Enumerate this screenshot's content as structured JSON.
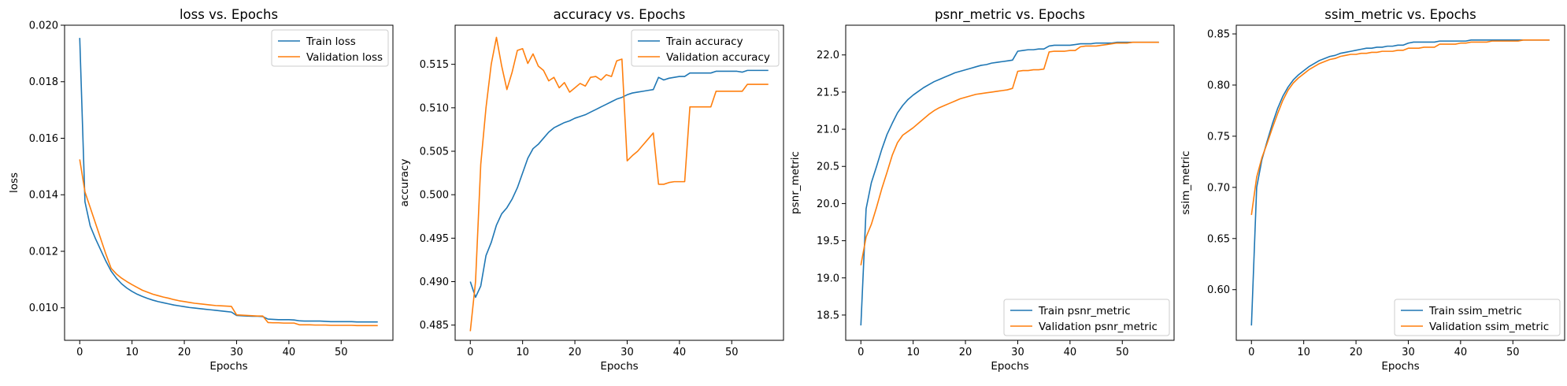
{
  "colors": {
    "train": "#1f77b4",
    "validation": "#ff7f0e"
  },
  "chart_data": [
    {
      "type": "line",
      "title": "loss vs. Epochs",
      "xlabel": "Epochs",
      "ylabel": "loss",
      "xlim": [
        -2.9,
        59.9
      ],
      "ylim": [
        0.00885,
        0.02
      ],
      "xticks": [
        0,
        10,
        20,
        30,
        40,
        50
      ],
      "yticks": [
        0.01,
        0.012,
        0.014,
        0.016,
        0.018,
        0.02
      ],
      "ytick_decimals": 3,
      "legend_loc": "upper right",
      "x": [
        0,
        1,
        2,
        3,
        4,
        5,
        6,
        7,
        8,
        9,
        10,
        11,
        12,
        13,
        14,
        15,
        16,
        17,
        18,
        19,
        20,
        21,
        22,
        23,
        24,
        25,
        26,
        27,
        28,
        29,
        30,
        31,
        32,
        33,
        34,
        35,
        36,
        37,
        38,
        39,
        40,
        41,
        42,
        43,
        44,
        45,
        46,
        47,
        48,
        49,
        50,
        51,
        52,
        53,
        54,
        55,
        56,
        57
      ],
      "series": [
        {
          "name": "Train loss",
          "color_key": "train",
          "values": [
            0.01955,
            0.01375,
            0.0129,
            0.01245,
            0.01205,
            0.01165,
            0.0113,
            0.01105,
            0.01085,
            0.0107,
            0.01058,
            0.01048,
            0.0104,
            0.01033,
            0.01027,
            0.01022,
            0.01018,
            0.01014,
            0.0101,
            0.01007,
            0.01004,
            0.01001,
            0.00999,
            0.00997,
            0.00995,
            0.00993,
            0.00991,
            0.00989,
            0.00987,
            0.00985,
            0.00973,
            0.00972,
            0.00971,
            0.0097,
            0.0097,
            0.00969,
            0.0096,
            0.00959,
            0.00958,
            0.00958,
            0.00958,
            0.00957,
            0.00954,
            0.00953,
            0.00953,
            0.00953,
            0.00953,
            0.00952,
            0.00951,
            0.00951,
            0.00951,
            0.00951,
            0.00951,
            0.0095,
            0.0095,
            0.0095,
            0.0095,
            0.0095
          ]
        },
        {
          "name": "Validation loss",
          "color_key": "validation",
          "values": [
            0.01525,
            0.0141,
            0.01355,
            0.013,
            0.01245,
            0.0119,
            0.0114,
            0.0112,
            0.01105,
            0.01093,
            0.01082,
            0.01072,
            0.01062,
            0.01055,
            0.01048,
            0.01043,
            0.01038,
            0.01034,
            0.01029,
            0.01025,
            0.01022,
            0.01019,
            0.01016,
            0.01014,
            0.01012,
            0.0101,
            0.01008,
            0.01007,
            0.01006,
            0.01005,
            0.00975,
            0.00974,
            0.00973,
            0.00972,
            0.00971,
            0.00971,
            0.00948,
            0.00947,
            0.00947,
            0.00946,
            0.00946,
            0.00946,
            0.0094,
            0.0094,
            0.0094,
            0.00939,
            0.00939,
            0.00939,
            0.00938,
            0.00938,
            0.00938,
            0.00938,
            0.00938,
            0.00937,
            0.00937,
            0.00937,
            0.00937,
            0.00937
          ]
        }
      ]
    },
    {
      "type": "line",
      "title": "accuracy vs. Epochs",
      "xlabel": "Epochs",
      "ylabel": "accuracy",
      "xlim": [
        -2.9,
        59.9
      ],
      "ylim": [
        0.48325,
        0.5195
      ],
      "xticks": [
        0,
        10,
        20,
        30,
        40,
        50
      ],
      "yticks": [
        0.485,
        0.49,
        0.495,
        0.5,
        0.505,
        0.51,
        0.515
      ],
      "ytick_decimals": 3,
      "legend_loc": "upper right",
      "x": [
        0,
        1,
        2,
        3,
        4,
        5,
        6,
        7,
        8,
        9,
        10,
        11,
        12,
        13,
        14,
        15,
        16,
        17,
        18,
        19,
        20,
        21,
        22,
        23,
        24,
        25,
        26,
        27,
        28,
        29,
        30,
        31,
        32,
        33,
        34,
        35,
        36,
        37,
        38,
        39,
        40,
        41,
        42,
        43,
        44,
        45,
        46,
        47,
        48,
        49,
        50,
        51,
        52,
        53,
        54,
        55,
        56,
        57
      ],
      "series": [
        {
          "name": "Train accuracy",
          "color_key": "train",
          "values": [
            0.49,
            0.4882,
            0.4895,
            0.493,
            0.4945,
            0.4965,
            0.4978,
            0.4985,
            0.4995,
            0.5008,
            0.5025,
            0.5042,
            0.5053,
            0.5058,
            0.5065,
            0.5072,
            0.5077,
            0.508,
            0.5083,
            0.5085,
            0.5088,
            0.509,
            0.5092,
            0.5095,
            0.5098,
            0.5101,
            0.5104,
            0.5107,
            0.511,
            0.5112,
            0.5115,
            0.5117,
            0.5118,
            0.5119,
            0.512,
            0.5121,
            0.5135,
            0.5132,
            0.5134,
            0.5135,
            0.5136,
            0.5136,
            0.514,
            0.514,
            0.514,
            0.514,
            0.514,
            0.5142,
            0.5142,
            0.5142,
            0.5142,
            0.5142,
            0.5141,
            0.5143,
            0.5143,
            0.5143,
            0.5143,
            0.5143
          ]
        },
        {
          "name": "Validation accuracy",
          "color_key": "validation",
          "values": [
            0.4843,
            0.49,
            0.5035,
            0.51,
            0.515,
            0.5181,
            0.5148,
            0.5121,
            0.5141,
            0.5166,
            0.5168,
            0.5151,
            0.5162,
            0.5148,
            0.5143,
            0.5131,
            0.5135,
            0.5123,
            0.5129,
            0.5118,
            0.5123,
            0.5128,
            0.5125,
            0.5135,
            0.5136,
            0.5132,
            0.5138,
            0.5136,
            0.5154,
            0.5156,
            0.5039,
            0.5045,
            0.505,
            0.5057,
            0.5064,
            0.5071,
            0.5012,
            0.5012,
            0.5014,
            0.5015,
            0.5015,
            0.5015,
            0.5101,
            0.5101,
            0.5101,
            0.5101,
            0.5101,
            0.5119,
            0.5119,
            0.5119,
            0.5119,
            0.5119,
            0.5119,
            0.5127,
            0.5127,
            0.5127,
            0.5127,
            0.5127
          ]
        }
      ]
    },
    {
      "type": "line",
      "title": "psnr_metric vs. Epochs",
      "xlabel": "Epochs",
      "ylabel": "psnr_metric",
      "xlim": [
        -2.9,
        59.9
      ],
      "ylim": [
        18.16,
        22.4
      ],
      "xticks": [
        0,
        10,
        20,
        30,
        40,
        50
      ],
      "yticks": [
        18.5,
        19.0,
        19.5,
        20.0,
        20.5,
        21.0,
        21.5,
        22.0
      ],
      "ytick_decimals": 1,
      "legend_loc": "lower right",
      "x": [
        0,
        1,
        2,
        3,
        4,
        5,
        6,
        7,
        8,
        9,
        10,
        11,
        12,
        13,
        14,
        15,
        16,
        17,
        18,
        19,
        20,
        21,
        22,
        23,
        24,
        25,
        26,
        27,
        28,
        29,
        30,
        31,
        32,
        33,
        34,
        35,
        36,
        37,
        38,
        39,
        40,
        41,
        42,
        43,
        44,
        45,
        46,
        47,
        48,
        49,
        50,
        51,
        52,
        53,
        54,
        55,
        56,
        57
      ],
      "series": [
        {
          "name": "Train psnr_metric",
          "color_key": "train",
          "values": [
            18.36,
            19.93,
            20.28,
            20.5,
            20.73,
            20.93,
            21.08,
            21.22,
            21.32,
            21.4,
            21.46,
            21.51,
            21.56,
            21.6,
            21.64,
            21.67,
            21.7,
            21.73,
            21.76,
            21.78,
            21.8,
            21.82,
            21.84,
            21.86,
            21.87,
            21.89,
            21.9,
            21.91,
            21.92,
            21.93,
            22.05,
            22.06,
            22.07,
            22.07,
            22.08,
            22.08,
            22.12,
            22.13,
            22.13,
            22.13,
            22.13,
            22.14,
            22.15,
            22.15,
            22.15,
            22.16,
            22.16,
            22.16,
            22.16,
            22.17,
            22.17,
            22.17,
            22.17,
            22.17,
            22.17,
            22.17,
            22.17,
            22.17
          ]
        },
        {
          "name": "Validation psnr_metric",
          "color_key": "validation",
          "values": [
            19.17,
            19.55,
            19.72,
            19.95,
            20.2,
            20.42,
            20.65,
            20.82,
            20.92,
            20.97,
            21.02,
            21.08,
            21.14,
            21.2,
            21.25,
            21.29,
            21.32,
            21.35,
            21.38,
            21.41,
            21.43,
            21.45,
            21.47,
            21.48,
            21.49,
            21.5,
            21.51,
            21.52,
            21.53,
            21.55,
            21.78,
            21.79,
            21.79,
            21.8,
            21.8,
            21.81,
            22.04,
            22.05,
            22.05,
            22.05,
            22.06,
            22.06,
            22.11,
            22.12,
            22.12,
            22.12,
            22.13,
            22.14,
            22.15,
            22.16,
            22.16,
            22.16,
            22.17,
            22.17,
            22.17,
            22.17,
            22.17,
            22.17
          ]
        }
      ]
    },
    {
      "type": "line",
      "title": "ssim_metric vs. Epochs",
      "xlabel": "Epochs",
      "ylabel": "ssim_metric",
      "xlim": [
        -2.9,
        59.9
      ],
      "ylim": [
        0.5505,
        0.8585
      ],
      "xticks": [
        0,
        10,
        20,
        30,
        40,
        50
      ],
      "yticks": [
        0.6,
        0.65,
        0.7,
        0.75,
        0.8,
        0.85
      ],
      "ytick_decimals": 2,
      "legend_loc": "lower right",
      "x": [
        0,
        1,
        2,
        3,
        4,
        5,
        6,
        7,
        8,
        9,
        10,
        11,
        12,
        13,
        14,
        15,
        16,
        17,
        18,
        19,
        20,
        21,
        22,
        23,
        24,
        25,
        26,
        27,
        28,
        29,
        30,
        31,
        32,
        33,
        34,
        35,
        36,
        37,
        38,
        39,
        40,
        41,
        42,
        43,
        44,
        45,
        46,
        47,
        48,
        49,
        50,
        51,
        52,
        53,
        54,
        55,
        56,
        57
      ],
      "series": [
        {
          "name": "Train ssim_metric",
          "color_key": "train",
          "values": [
            0.565,
            0.7,
            0.727,
            0.745,
            0.762,
            0.777,
            0.789,
            0.798,
            0.805,
            0.81,
            0.814,
            0.818,
            0.821,
            0.824,
            0.826,
            0.828,
            0.829,
            0.831,
            0.832,
            0.833,
            0.834,
            0.835,
            0.836,
            0.836,
            0.837,
            0.837,
            0.838,
            0.838,
            0.839,
            0.839,
            0.841,
            0.842,
            0.842,
            0.842,
            0.842,
            0.842,
            0.843,
            0.843,
            0.843,
            0.843,
            0.843,
            0.843,
            0.844,
            0.844,
            0.844,
            0.844,
            0.844,
            0.844,
            0.844,
            0.844,
            0.844,
            0.844,
            0.844,
            0.844,
            0.844,
            0.844,
            0.844,
            0.844
          ]
        },
        {
          "name": "Validation ssim_metric",
          "color_key": "validation",
          "values": [
            0.673,
            0.71,
            0.729,
            0.743,
            0.758,
            0.772,
            0.785,
            0.795,
            0.802,
            0.807,
            0.811,
            0.815,
            0.818,
            0.821,
            0.823,
            0.825,
            0.826,
            0.828,
            0.829,
            0.83,
            0.83,
            0.831,
            0.831,
            0.832,
            0.832,
            0.833,
            0.833,
            0.833,
            0.834,
            0.834,
            0.836,
            0.836,
            0.836,
            0.837,
            0.837,
            0.837,
            0.84,
            0.84,
            0.84,
            0.84,
            0.841,
            0.841,
            0.842,
            0.842,
            0.842,
            0.842,
            0.843,
            0.843,
            0.843,
            0.843,
            0.843,
            0.843,
            0.844,
            0.844,
            0.844,
            0.844,
            0.844,
            0.844
          ]
        }
      ]
    }
  ]
}
